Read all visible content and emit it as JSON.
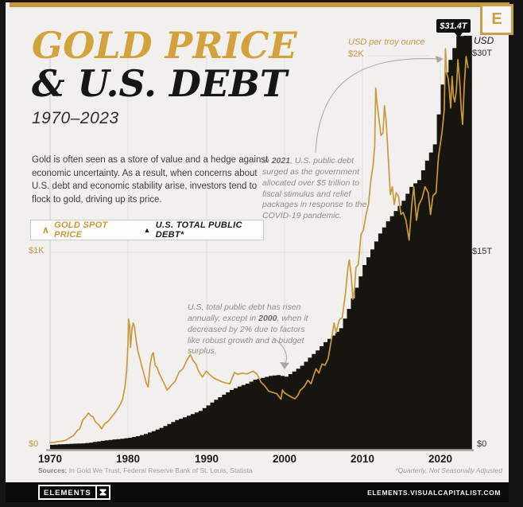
{
  "header": {
    "title_line1": "GOLD PRICE",
    "title_line2": "& U.S. DEBT",
    "subtitle": "1970–2023",
    "logo_letter": "E"
  },
  "intro": "Gold is often seen as a store of value and a hedge against economic uncertainty. As a result, when concerns about U.S. debt and economic stability arise, investors tend to flock to gold, driving up its price.",
  "legend": {
    "gold_marker": "∧",
    "gold_label": "GOLD SPOT PRICE",
    "debt_marker": "▲",
    "debt_label": "U.S. TOTAL PUBLIC DEBT*"
  },
  "callout": {
    "value": "$31.4T"
  },
  "axes": {
    "left_title": "USD per troy ounce",
    "left_top_tick": "$2K",
    "left_mid_tick": "$1K",
    "left_zero_tick": "$0",
    "right_title": "USD",
    "right_top_tick": "$30T",
    "right_mid_tick": "$15T",
    "right_zero_tick": "$0",
    "x_ticks": [
      "1970",
      "1980",
      "1990",
      "2000",
      "2010",
      "2020"
    ]
  },
  "annotations": {
    "debt_2021": {
      "part1": "In ",
      "year": "2021",
      "part2": ", U.S. public debt surged as the government allocated over $5 trillion to fiscal stimulus and relief packages in response to the COVID-19 pandemic."
    },
    "debt_2000": {
      "part1": "U.S. total public debt has risen annually, except in ",
      "year": "2000",
      "part2": ", when it decreased by 2% due to factors like robust growth and a budget surplus."
    }
  },
  "footnotes": {
    "sources_label": "Sources:",
    "sources": "In Gold We Trust, Federal Reserve Bank of St. Louis, Statista",
    "note": "*Quarterly, Not Seasonally Adjusted"
  },
  "footer": {
    "brand": "ELEMENTS",
    "url": "ELEMENTS.VISUALCAPITALIST.COM"
  },
  "colors": {
    "gold_accent": "#c9993b",
    "title_gold": "#d2a33d",
    "bar_black": "#17150f",
    "background": "#f1f0ee",
    "annotation_gray": "#8f8d89"
  },
  "chart_data": {
    "type": "combo",
    "title": "Gold Price & U.S. Debt, 1970–2023",
    "x_range": [
      1970,
      2024
    ],
    "x_ticks": [
      1970,
      1980,
      1990,
      2000,
      2010,
      2020
    ],
    "left_axis": {
      "label": "USD per troy ounce",
      "range": [
        0,
        2000
      ],
      "ticks": [
        0,
        1000,
        2000
      ]
    },
    "right_axis": {
      "label": "USD trillions",
      "range": [
        0,
        30
      ],
      "ticks": [
        0,
        15,
        30
      ]
    },
    "grid": "faint vertical decade lines, horizontal at $1K/$2K",
    "legend_position": "above chart, left",
    "callout": {
      "year": 2022,
      "label": "$31.4T",
      "value_trillions": 31.4
    },
    "series": [
      {
        "name": "Gold spot price",
        "type": "line",
        "axis": "left",
        "color": "#c9993b",
        "points": [
          [
            1970,
            36
          ],
          [
            1970.5,
            37
          ],
          [
            1971,
            41
          ],
          [
            1971.5,
            43
          ],
          [
            1972,
            48
          ],
          [
            1972.5,
            60
          ],
          [
            1973,
            72
          ],
          [
            1973.5,
            98
          ],
          [
            1973.8,
            106
          ],
          [
            1974.2,
            152
          ],
          [
            1974.6,
            168
          ],
          [
            1974.9,
            186
          ],
          [
            1975.2,
            172
          ],
          [
            1975.5,
            166
          ],
          [
            1975.8,
            141
          ],
          [
            1976.2,
            128
          ],
          [
            1976.6,
            106
          ],
          [
            1977,
            132
          ],
          [
            1977.5,
            146
          ],
          [
            1978,
            172
          ],
          [
            1978.4,
            192
          ],
          [
            1978.7,
            210
          ],
          [
            1979,
            230
          ],
          [
            1979.3,
            258
          ],
          [
            1979.6,
            324
          ],
          [
            1979.8,
            402
          ],
          [
            1979.95,
            515
          ],
          [
            1980.05,
            662
          ],
          [
            1980.18,
            630
          ],
          [
            1980.3,
            518
          ],
          [
            1980.5,
            618
          ],
          [
            1980.65,
            642
          ],
          [
            1980.8,
            622
          ],
          [
            1981,
            558
          ],
          [
            1981.25,
            498
          ],
          [
            1981.5,
            462
          ],
          [
            1981.75,
            420
          ],
          [
            1982,
            386
          ],
          [
            1982.3,
            338
          ],
          [
            1982.55,
            318
          ],
          [
            1982.8,
            428
          ],
          [
            1983.05,
            482
          ],
          [
            1983.2,
            492
          ],
          [
            1983.45,
            428
          ],
          [
            1983.7,
            416
          ],
          [
            1984,
            384
          ],
          [
            1984.5,
            344
          ],
          [
            1985,
            302
          ],
          [
            1985.5,
            326
          ],
          [
            1986,
            346
          ],
          [
            1986.5,
            392
          ],
          [
            1987,
            410
          ],
          [
            1987.5,
            452
          ],
          [
            1987.95,
            482
          ],
          [
            1988.3,
            452
          ],
          [
            1988.7,
            432
          ],
          [
            1989,
            398
          ],
          [
            1989.5,
            368
          ],
          [
            1990,
            398
          ],
          [
            1990.5,
            378
          ],
          [
            1991,
            362
          ],
          [
            1992,
            344
          ],
          [
            1992.5,
            338
          ],
          [
            1993,
            334
          ],
          [
            1993.6,
            392
          ],
          [
            1994,
            382
          ],
          [
            1994.6,
            388
          ],
          [
            1995.2,
            384
          ],
          [
            1996,
            398
          ],
          [
            1996.5,
            382
          ],
          [
            1997,
            342
          ],
          [
            1997.5,
            322
          ],
          [
            1998,
            296
          ],
          [
            1998.5,
            290
          ],
          [
            1999,
            284
          ],
          [
            1999.55,
            256
          ],
          [
            1999.75,
            302
          ],
          [
            2000,
            288
          ],
          [
            2000.5,
            276
          ],
          [
            2001,
            264
          ],
          [
            2001.35,
            258
          ],
          [
            2001.7,
            274
          ],
          [
            2002,
            300
          ],
          [
            2002.5,
            318
          ],
          [
            2003,
            352
          ],
          [
            2003.4,
            334
          ],
          [
            2003.8,
            384
          ],
          [
            2004.05,
            410
          ],
          [
            2004.4,
            388
          ],
          [
            2004.8,
            434
          ],
          [
            2005.2,
            428
          ],
          [
            2005.6,
            462
          ],
          [
            2006,
            556
          ],
          [
            2006.35,
            642
          ],
          [
            2006.6,
            592
          ],
          [
            2007,
            656
          ],
          [
            2007.4,
            670
          ],
          [
            2007.8,
            792
          ],
          [
            2008.15,
            928
          ],
          [
            2008.3,
            962
          ],
          [
            2008.55,
            882
          ],
          [
            2008.75,
            762
          ],
          [
            2008.95,
            806
          ],
          [
            2009.15,
            922
          ],
          [
            2009.45,
            938
          ],
          [
            2009.8,
            1092
          ],
          [
            2010.1,
            1112
          ],
          [
            2010.45,
            1192
          ],
          [
            2010.75,
            1242
          ],
          [
            2011.05,
            1362
          ],
          [
            2011.35,
            1444
          ],
          [
            2011.55,
            1538
          ],
          [
            2011.68,
            1832
          ],
          [
            2011.82,
            1762
          ],
          [
            2011.95,
            1722
          ],
          [
            2012.1,
            1672
          ],
          [
            2012.35,
            1592
          ],
          [
            2012.6,
            1604
          ],
          [
            2012.8,
            1742
          ],
          [
            2013,
            1672
          ],
          [
            2013.3,
            1472
          ],
          [
            2013.55,
            1292
          ],
          [
            2013.8,
            1332
          ],
          [
            2014.05,
            1242
          ],
          [
            2014.3,
            1302
          ],
          [
            2014.6,
            1282
          ],
          [
            2014.9,
            1192
          ],
          [
            2015.2,
            1202
          ],
          [
            2015.55,
            1162
          ],
          [
            2015.95,
            1062
          ],
          [
            2016.3,
            1242
          ],
          [
            2016.55,
            1332
          ],
          [
            2016.9,
            1162
          ],
          [
            2017.2,
            1242
          ],
          [
            2017.6,
            1272
          ],
          [
            2018,
            1332
          ],
          [
            2018.4,
            1302
          ],
          [
            2018.7,
            1192
          ],
          [
            2019,
            1286
          ],
          [
            2019.4,
            1302
          ],
          [
            2019.7,
            1482
          ],
          [
            2020,
            1562
          ],
          [
            2020.2,
            1622
          ],
          [
            2020.45,
            1722
          ],
          [
            2020.6,
            2032
          ],
          [
            2020.78,
            1902
          ],
          [
            2020.95,
            1882
          ],
          [
            2021.1,
            1822
          ],
          [
            2021.28,
            1732
          ],
          [
            2021.45,
            1892
          ],
          [
            2021.62,
            1792
          ],
          [
            2021.8,
            1762
          ],
          [
            2022,
            1822
          ],
          [
            2022.2,
            1976
          ],
          [
            2022.45,
            1852
          ],
          [
            2022.62,
            1722
          ],
          [
            2022.8,
            1648
          ],
          [
            2023,
            1836
          ],
          [
            2023.25,
            1992
          ],
          [
            2023.5,
            1936
          ]
        ]
      },
      {
        "name": "U.S. total public debt",
        "type": "bar",
        "axis": "right",
        "color": "#17150f",
        "start_year": 1970,
        "values": [
          0.37,
          0.41,
          0.43,
          0.46,
          0.48,
          0.54,
          0.63,
          0.71,
          0.78,
          0.83,
          0.91,
          1.03,
          1.2,
          1.41,
          1.66,
          1.95,
          2.25,
          2.46,
          2.71,
          2.95,
          3.36,
          3.8,
          4.18,
          4.54,
          4.8,
          5.02,
          5.32,
          5.46,
          5.61,
          5.67,
          5.55,
          5.94,
          6.38,
          6.99,
          7.55,
          8.17,
          8.68,
          9.23,
          10.7,
          12.31,
          14.03,
          15.22,
          16.43,
          17.35,
          18.14,
          18.92,
          19.98,
          20.49,
          21.97,
          23.2,
          27.75,
          29.62,
          31.42,
          31.46
        ]
      }
    ]
  }
}
